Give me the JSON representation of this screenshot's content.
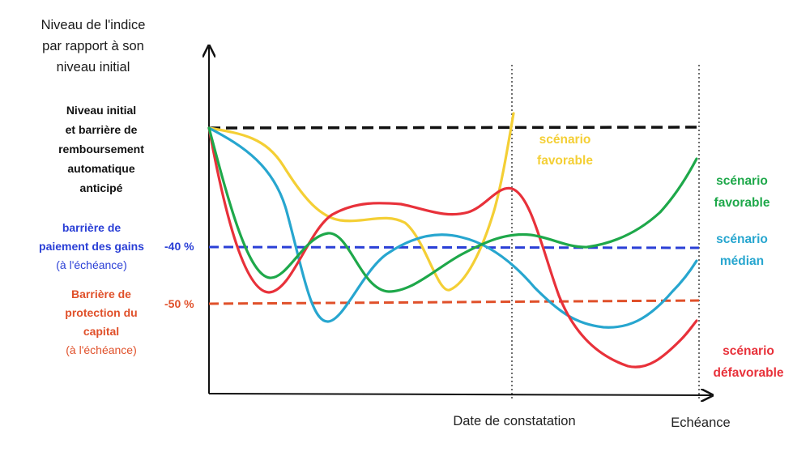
{
  "y_axis_title": [
    "Niveau de l'indice",
    "par rapport à son",
    "niveau initial"
  ],
  "initial_level_label": [
    "Niveau initial",
    "et barrière de",
    "remboursement",
    "automatique",
    "anticipé"
  ],
  "gains_barrier_label": [
    "barrière de",
    "paiement des gains"
  ],
  "gains_barrier_sublabel": "(à l'échéance)",
  "gains_barrier_value": "-40 %",
  "protection_barrier_label": [
    "Barrière de",
    "protection du",
    "capital"
  ],
  "protection_barrier_sublabel": "(à l'échéance)",
  "protection_barrier_value": "-50 %",
  "x_labels": {
    "observation_date": "Date de constatation",
    "maturity": "Echéance"
  },
  "scenarios": {
    "early_favorable": [
      "scénario",
      "favorable"
    ],
    "favorable": [
      "scénario",
      "favorable"
    ],
    "median": [
      "scénario",
      "médian"
    ],
    "unfavorable": [
      "scénario",
      "défavorable"
    ]
  },
  "colors": {
    "initial_line": "#111111",
    "gains_barrier": "#2a3fd6",
    "protection_barrier": "#e0502a",
    "yellow_scenario": "#f4cf35",
    "green_scenario": "#1ea84a",
    "blue_scenario": "#27a6cf",
    "red_scenario": "#e8313a",
    "axis": "#111111"
  }
}
